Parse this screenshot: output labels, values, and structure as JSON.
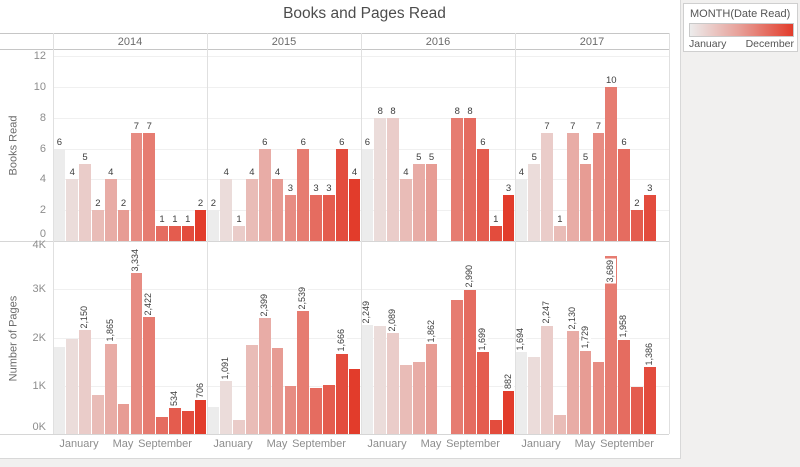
{
  "title": "Books and Pages Read",
  "legend": {
    "title": "MONTH(Date Read)",
    "min_label": "January",
    "max_label": "December"
  },
  "chart_data": {
    "type": "bar",
    "title": "Books and Pages Read",
    "facet_years": [
      "2014",
      "2015",
      "2016",
      "2017"
    ],
    "x_tick_labels": [
      "January",
      "May",
      "September"
    ],
    "months": [
      "January",
      "February",
      "March",
      "April",
      "May",
      "June",
      "July",
      "August",
      "September",
      "October",
      "November",
      "December"
    ],
    "month_colors": [
      "#ECECEC",
      "#EBDCDA",
      "#EACCC9",
      "#E9BCB7",
      "#E8ACA6",
      "#E79C94",
      "#E78C83",
      "#E67C71",
      "#E56C60",
      "#E45C4E",
      "#E34C3D",
      "#E23C2B"
    ],
    "rows": [
      {
        "key": "books",
        "axis_label": "Books Read",
        "ylim": [
          0,
          12
        ],
        "ytick_values": [
          0,
          2,
          4,
          6,
          8,
          10,
          12
        ],
        "ytick_labels": [
          "0",
          "2",
          "4",
          "6",
          "8",
          "10",
          "12"
        ],
        "grid": true
      },
      {
        "key": "pages",
        "axis_label": "Number of Pages",
        "ylim": [
          0,
          4000
        ],
        "ytick_values": [
          0,
          1000,
          2000,
          3000,
          4000
        ],
        "ytick_labels": [
          "0K",
          "1K",
          "2K",
          "3K",
          "4K"
        ],
        "grid": true
      }
    ],
    "books": {
      "2014": {
        "values": [
          6,
          4,
          5,
          2,
          4,
          2,
          7,
          7,
          1,
          1,
          1,
          2
        ],
        "labels": [
          "6",
          "4",
          "5",
          "2",
          "4",
          "2",
          "7",
          "7",
          "1",
          "1",
          "1",
          "2"
        ]
      },
      "2015": {
        "values": [
          2,
          4,
          1,
          4,
          6,
          4,
          3,
          6,
          3,
          3,
          6,
          4
        ],
        "labels": [
          "2",
          "4",
          "1",
          "4",
          "6",
          "4",
          "3",
          "6",
          "3",
          "3",
          "6",
          "4"
        ]
      },
      "2016": {
        "values": [
          6,
          8,
          8,
          4,
          5,
          5,
          null,
          8,
          8,
          6,
          1,
          3
        ],
        "labels": [
          "6",
          "8",
          "8",
          "4",
          "5",
          "5",
          null,
          "8",
          "8",
          "6",
          "1",
          "3"
        ]
      },
      "2017": {
        "values": [
          4,
          5,
          7,
          1,
          7,
          5,
          7,
          10,
          6,
          2,
          3,
          null
        ],
        "labels": [
          "4",
          "5",
          "7",
          "1",
          "7",
          "5",
          "7",
          "10",
          "6",
          "2",
          "3",
          null
        ]
      }
    },
    "pages": {
      "2014": {
        "values": [
          1800,
          1960,
          2150,
          810,
          1865,
          615,
          3334,
          2422,
          350,
          534,
          480,
          706
        ],
        "labels": [
          null,
          null,
          "2,150",
          null,
          "1,865",
          null,
          "3,334",
          "2,422",
          null,
          "534",
          null,
          "706"
        ]
      },
      "2015": {
        "values": [
          550,
          1091,
          280,
          1850,
          2399,
          1780,
          1000,
          2539,
          950,
          1010,
          1666,
          1350
        ],
        "labels": [
          null,
          "1,091",
          null,
          null,
          "2,399",
          null,
          null,
          "2,539",
          null,
          null,
          "1,666",
          null
        ]
      },
      "2016": {
        "values": [
          2249,
          2240,
          2089,
          1420,
          1490,
          1862,
          null,
          2780,
          2990,
          1699,
          290,
          882
        ],
        "labels": [
          "2,249",
          null,
          "2,089",
          null,
          null,
          "1,862",
          null,
          null,
          "2,990",
          "1,699",
          null,
          "882"
        ]
      },
      "2017": {
        "values": [
          1694,
          1600,
          2247,
          390,
          2130,
          1729,
          1490,
          3689,
          1958,
          970,
          1386,
          null
        ],
        "labels": [
          "1,694",
          null,
          "2,247",
          null,
          "2,130",
          "1,729",
          null,
          "3,689",
          "1,958",
          null,
          "1,386",
          null
        ]
      }
    }
  }
}
